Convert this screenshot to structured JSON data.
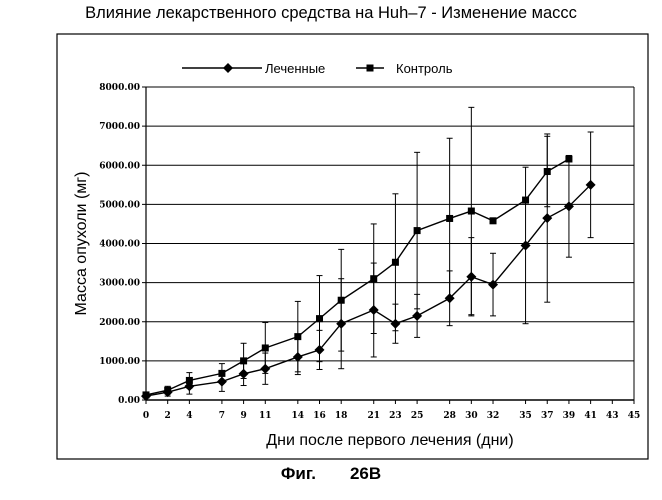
{
  "page": {
    "title": "Влияние лекарственного средства на Huh–7 - Изменение массс",
    "caption_prefix": "Фиг.",
    "caption_number": "26В"
  },
  "chart_data": {
    "type": "line",
    "title": "Влияние лекарственного средства на Huh–7 - Изменение массс",
    "xlabel": "Дни после первого лечения (дни)",
    "ylabel": "Масса опухоли (мг)",
    "xlim": [
      0,
      45
    ],
    "ylim": [
      0,
      8000
    ],
    "x_ticks": [
      0,
      2,
      4,
      7,
      9,
      11,
      14,
      16,
      18,
      21,
      23,
      25,
      28,
      30,
      32,
      35,
      37,
      39,
      41,
      43,
      45
    ],
    "y_ticks": [
      "0.00",
      "1000.00",
      "2000.00",
      "3000.00",
      "4000.00",
      "5000.00",
      "6000.00",
      "7000.00",
      "8000.00"
    ],
    "grid": "horizontal",
    "legend_position": "top-center",
    "series": [
      {
        "name": "Леченные",
        "marker": "diamond",
        "color": "#000000",
        "x": [
          0,
          2,
          4,
          7,
          9,
          11,
          14,
          16,
          18,
          21,
          23,
          25,
          28,
          30,
          32,
          35,
          37,
          39,
          41
        ],
        "values": [
          100,
          200,
          350,
          470,
          670,
          800,
          1100,
          1280,
          1950,
          2300,
          1950,
          2150,
          2600,
          3150,
          2950,
          3950,
          4650,
          4950,
          5500
        ],
        "error": [
          50,
          100,
          200,
          250,
          300,
          400,
          450,
          500,
          1150,
          1200,
          500,
          550,
          700,
          1000,
          800,
          2000,
          2150,
          1300,
          1350
        ]
      },
      {
        "name": "Контроль",
        "marker": "square",
        "color": "#000000",
        "x": [
          0,
          2,
          4,
          7,
          9,
          11,
          14,
          16,
          18,
          21,
          23,
          25,
          28,
          30,
          32,
          35,
          37,
          39
        ],
        "values": [
          130,
          250,
          500,
          680,
          1000,
          1330,
          1620,
          2080,
          2550,
          3100,
          3520,
          4330,
          4640,
          4830,
          4580,
          5110,
          5840,
          6160
        ],
        "error": [
          50,
          100,
          200,
          250,
          450,
          650,
          900,
          1100,
          1300,
          1400,
          1750,
          2000,
          2050,
          2650,
          0,
          0,
          900,
          0
        ]
      }
    ]
  }
}
